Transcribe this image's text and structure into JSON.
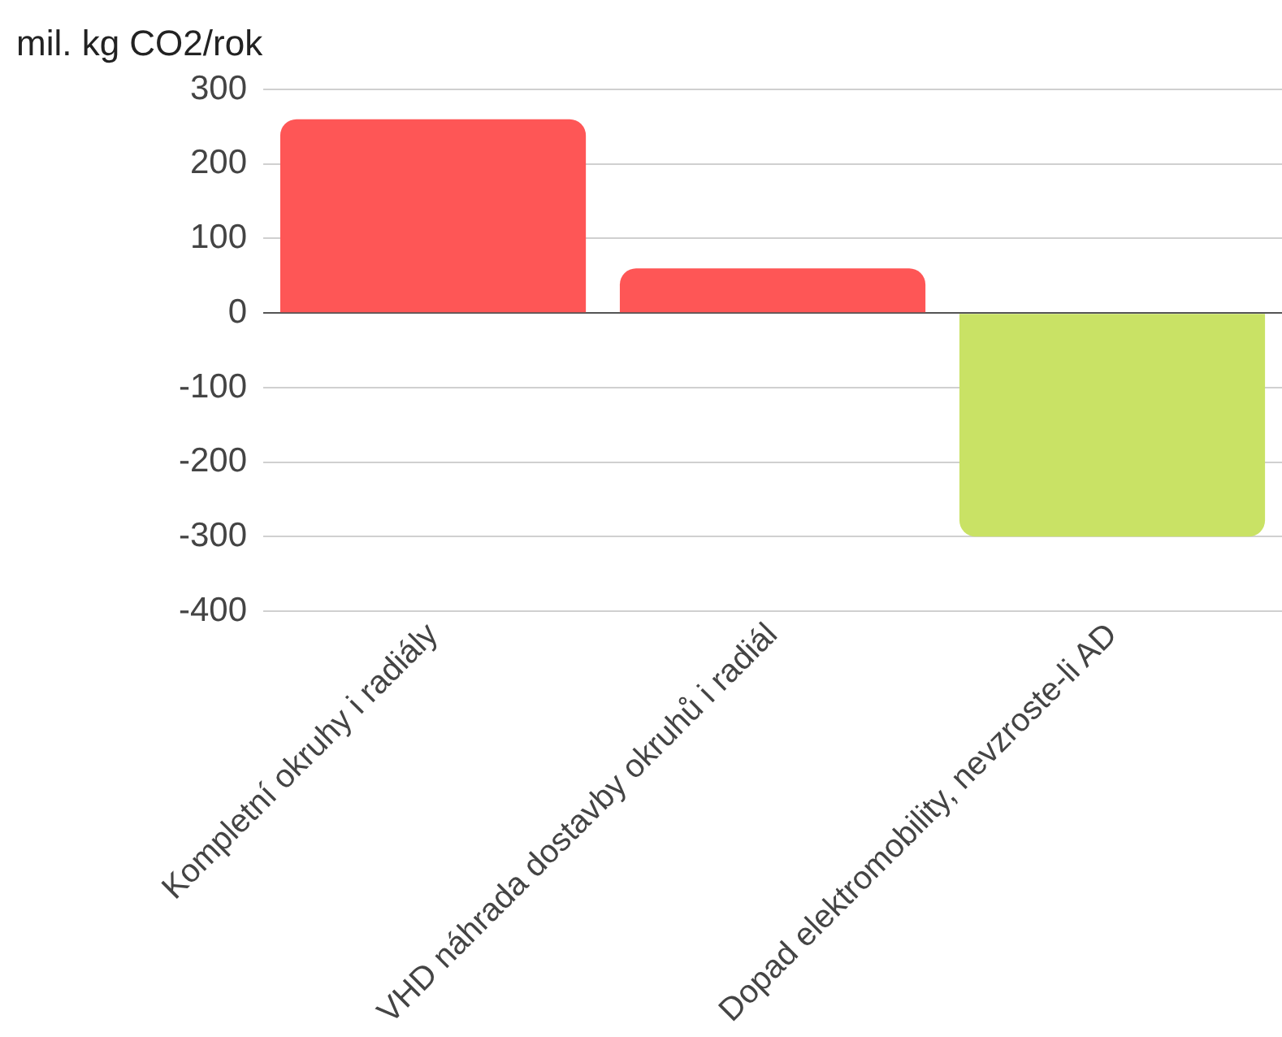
{
  "chart_data": {
    "type": "bar",
    "ylabel": "mil. kg CO2/rok",
    "categories": [
      "Kompletní okruhy i radiály",
      "VHD náhrada dostavby okruhů i radiál",
      "Dopad elektromobility, nevzroste-li AD"
    ],
    "values": [
      260,
      60,
      -300
    ],
    "colors": [
      "#fe5656",
      "#fe5656",
      "#c9e265"
    ],
    "ylim": [
      -400,
      300
    ],
    "yticks": [
      -400,
      -300,
      -200,
      -100,
      0,
      100,
      200,
      300
    ],
    "grid": "y",
    "legend": false
  }
}
